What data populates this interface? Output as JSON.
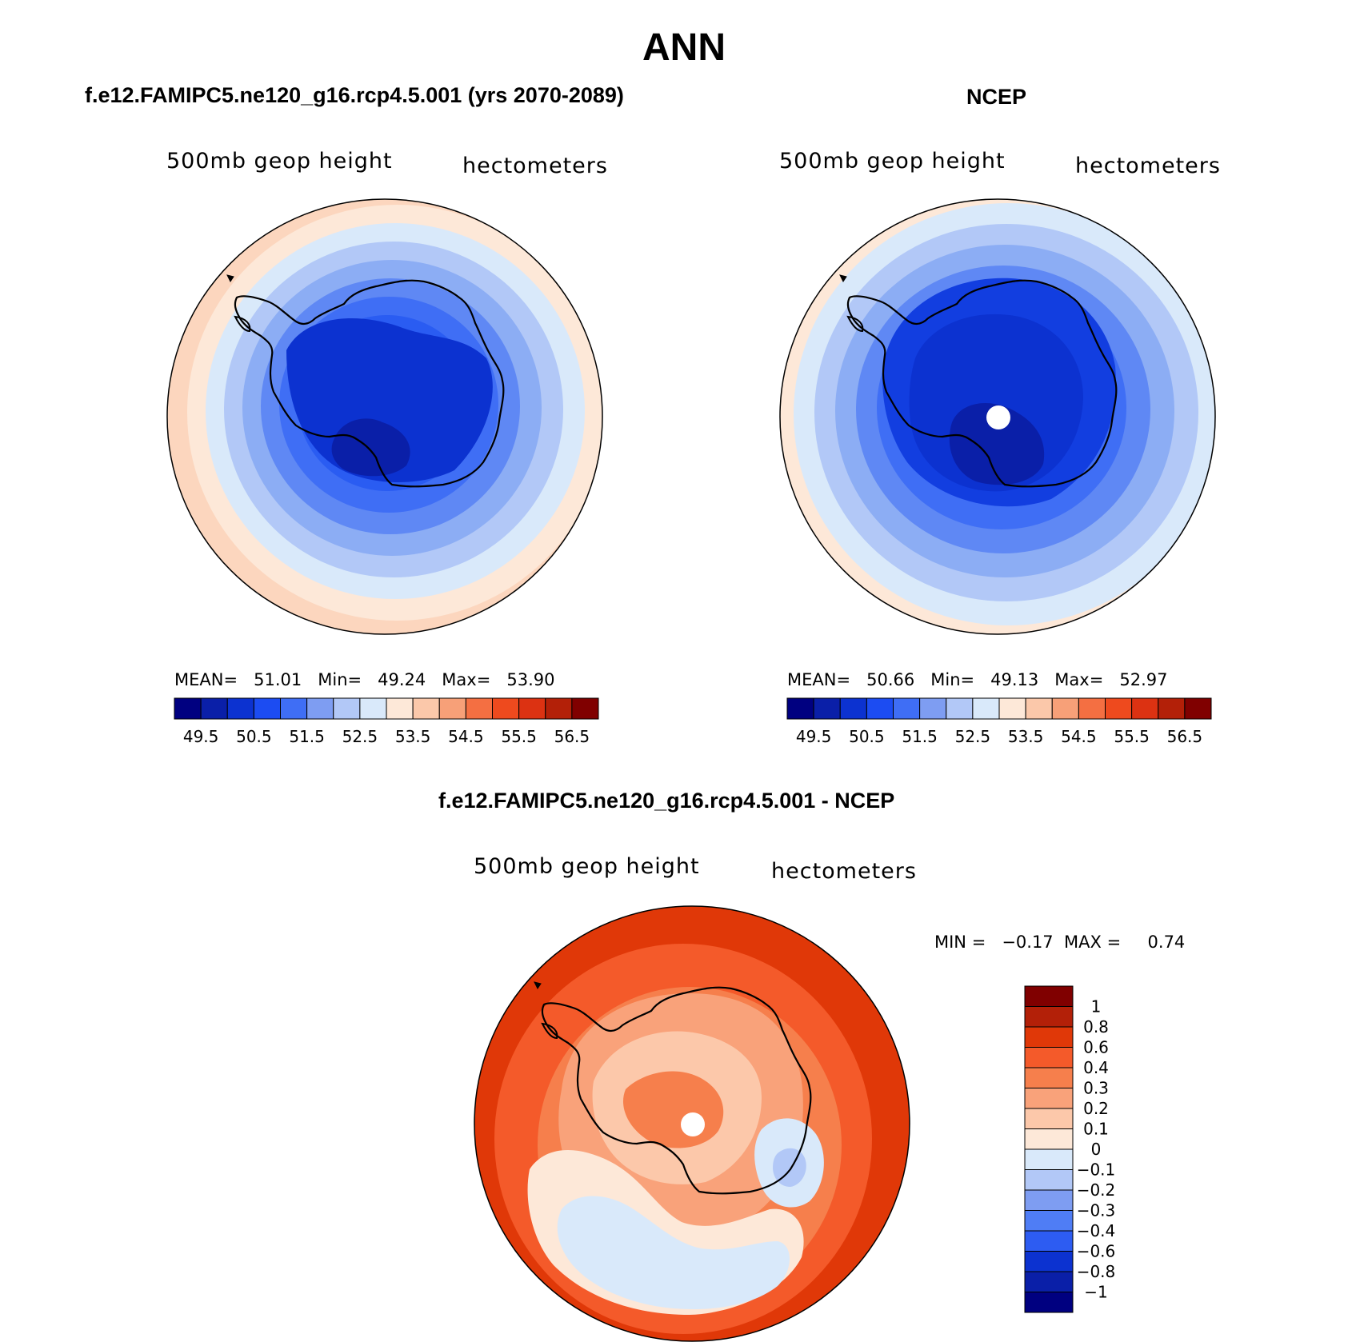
{
  "main_title": "ANN",
  "panels": {
    "model": {
      "title": "f.e12.FAMIPC5.ne120_g16.rcp4.5.001 (yrs 2070-2089)",
      "left_label": "500mb  geop  height",
      "right_label": "hectometers",
      "stats": {
        "mean_label": "MEAN=",
        "mean": "51.01",
        "min_label": "Min=",
        "min": "49.24",
        "max_label": "Max=",
        "max": "53.90"
      }
    },
    "obs": {
      "title": "NCEP",
      "left_label": "500mb  geop  height",
      "right_label": "hectometers",
      "stats": {
        "mean_label": "MEAN=",
        "mean": "50.66",
        "min_label": "Min=",
        "min": "49.13",
        "max_label": "Max=",
        "max": "52.97"
      }
    },
    "diff": {
      "title": "f.e12.FAMIPC5.ne120_g16.rcp4.5.001 - NCEP",
      "left_label": "500mb  geop  height",
      "right_label": "hectometers",
      "stats_text": "MIN =   −0.17  MAX =     0.74"
    }
  },
  "colorbar_main": {
    "colors": [
      "#000080",
      "#0a1fa8",
      "#0c32d0",
      "#1c4cf2",
      "#3f6ef5",
      "#7e9df2",
      "#b2c8f7",
      "#d9e9fa",
      "#fde8d8",
      "#fbc8aa",
      "#f7a078",
      "#f46f42",
      "#ee4a1e",
      "#dc3212",
      "#b32008",
      "#800000"
    ],
    "labels": [
      "49.5",
      "50.5",
      "51.5",
      "52.5",
      "53.5",
      "54.5",
      "55.5",
      "56.5"
    ]
  },
  "colorbar_diff": {
    "colors": [
      "#800000",
      "#b32008",
      "#e03808",
      "#f45a2a",
      "#f67f4c",
      "#f9a27a",
      "#fcc8aa",
      "#fde8d8",
      "#d9e9fa",
      "#b2c8f7",
      "#7e9df2",
      "#4f7df5",
      "#2d5cf2",
      "#0c32d0",
      "#0a1fa8",
      "#000080"
    ],
    "labels": [
      "1",
      "0.8",
      "0.6",
      "0.4",
      "0.3",
      "0.2",
      "0.1",
      "0",
      "−0.1",
      "−0.2",
      "−0.3",
      "−0.4",
      "−0.6",
      "−0.8",
      "−1"
    ]
  },
  "map_palette": {
    "model_rings": [
      "#fcd6be",
      "#fde8d8",
      "#d9e9fa",
      "#b2c8f7",
      "#8cadf4",
      "#5f88f4",
      "#3f6ef5",
      "#2a5cf2",
      "#1c4cf2",
      "#123ee0"
    ],
    "model_core": [
      "#0c32d0",
      "#0a1fa8"
    ],
    "obs_rings": [
      "#fde8d8",
      "#d9e9fa",
      "#b2c8f7",
      "#8cadf4",
      "#5f88f4",
      "#3f6ef5",
      "#2a5cf2",
      "#1c4cf2"
    ],
    "obs_core": [
      "#123ee0",
      "#0c32d0",
      "#0a1fa8"
    ],
    "diff_fill": [
      "#e03808",
      "#f45a2a",
      "#f67f4c",
      "#f9a27a",
      "#fcc8aa",
      "#fde8d8",
      "#d9e9fa",
      "#b2c8f7"
    ]
  }
}
